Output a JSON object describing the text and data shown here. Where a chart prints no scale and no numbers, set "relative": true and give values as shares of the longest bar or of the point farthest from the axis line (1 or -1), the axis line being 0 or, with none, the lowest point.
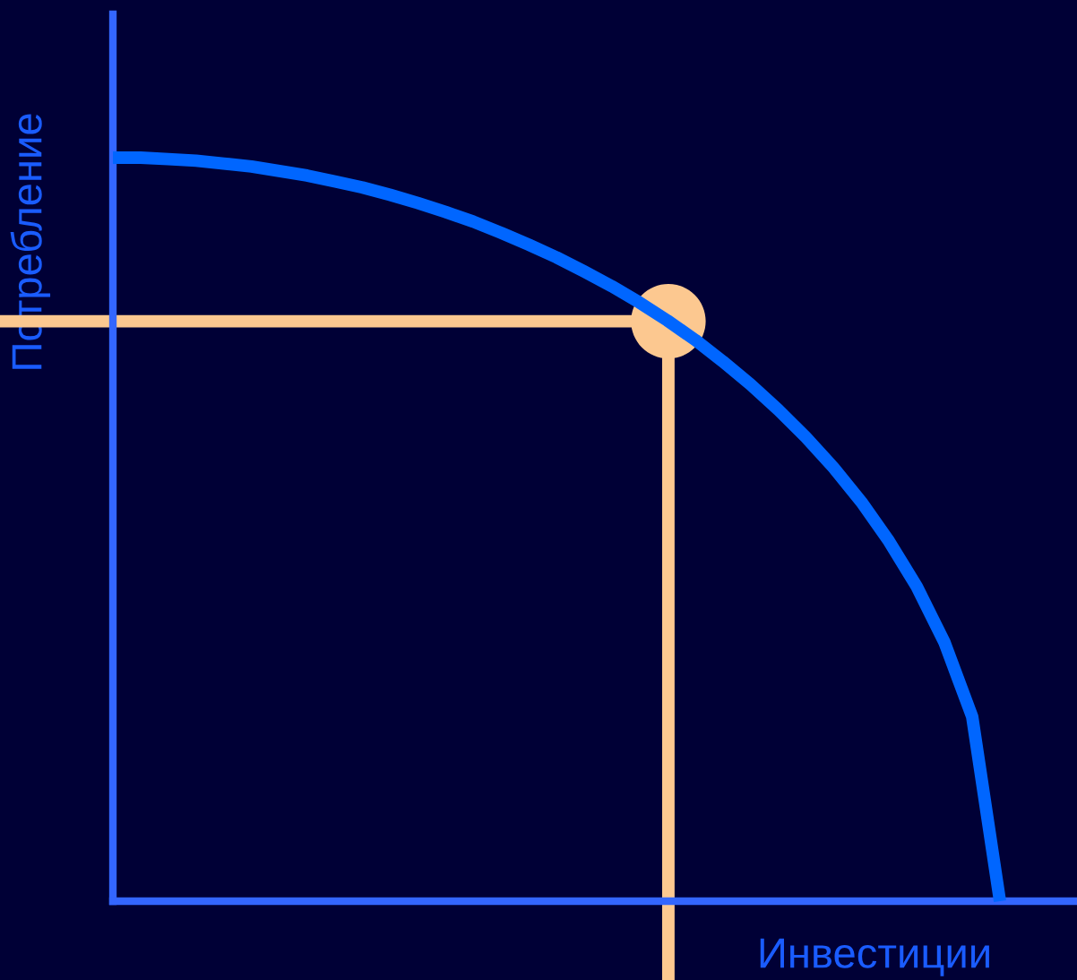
{
  "chart_data": {
    "type": "line",
    "relative": true,
    "xlabel": "Инвестиции",
    "ylabel": "Потребление",
    "categories": [
      null,
      null,
      null,
      null,
      null,
      null,
      null,
      null,
      null,
      null,
      null,
      null,
      null,
      null,
      null,
      null,
      null,
      null,
      null,
      null,
      null,
      null,
      null,
      null,
      null,
      null,
      null,
      null,
      null,
      null,
      null,
      null,
      null
    ],
    "series": [
      {
        "color": "#0066ff",
        "values": [
          1,
          1.0,
          0.998,
          0.996,
          0.992,
          0.988,
          0.982,
          0.976,
          0.968,
          0.96,
          0.95,
          0.939,
          0.927,
          0.914,
          0.899,
          0.883,
          0.866,
          0.847,
          0.827,
          0.805,
          0.781,
          0.755,
          0.726,
          0.695,
          0.661,
          0.624,
          0.583,
          0.537,
          0.484,
          0.423,
          0.348,
          0.248,
          0
        ]
      }
    ],
    "ref_lines": [
      {
        "axis": "y",
        "value": 0.78,
        "color": "#fcc890"
      }
    ]
  }
}
